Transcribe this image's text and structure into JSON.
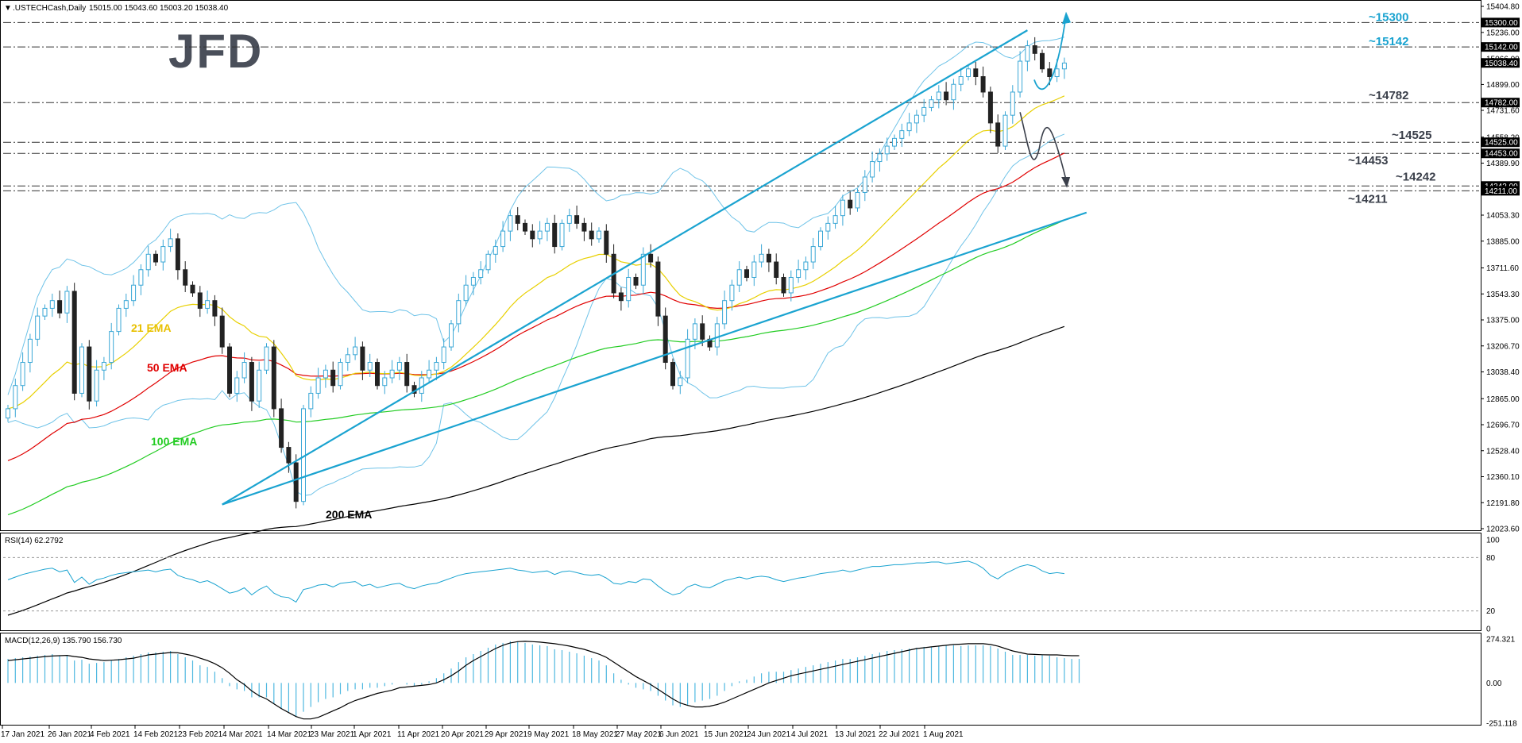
{
  "chart_data": {
    "type": "candlestick",
    "header": {
      "symbol": ".USTECHCash,Daily",
      "ohlc": "15015.00 15043.60 15003.20 15038.40"
    },
    "logo_text": "JFD",
    "price_axis": {
      "ylim": [
        12023.6,
        15404.8
      ],
      "tick_labels": [
        "15404.80",
        "15236.00",
        "15066.00",
        "14899.00",
        "14731.60",
        "14558.20",
        "14389.90",
        "14221.00",
        "14053.30",
        "13885.00",
        "13711.60",
        "13543.30",
        "13375.00",
        "13206.70",
        "13038.40",
        "12865.00",
        "12696.70",
        "12528.40",
        "12360.10",
        "12191.80",
        "12023.60"
      ],
      "price_boxes": [
        {
          "label": "15300.00",
          "value": 15300,
          "dark": true
        },
        {
          "label": "15142.00",
          "value": 15142,
          "dark": true
        },
        {
          "label": "15038.40",
          "value": 15038.4,
          "dark": true
        },
        {
          "label": "14782.00",
          "value": 14782,
          "dark": true
        },
        {
          "label": "14525.00",
          "value": 14525,
          "dark": true
        },
        {
          "label": "14453.00",
          "value": 14453,
          "dark": true
        },
        {
          "label": "14242.00",
          "value": 14242,
          "dark": true
        },
        {
          "label": "14211.00",
          "value": 14211,
          "dark": true
        }
      ]
    },
    "levels": [
      {
        "label": "~15300",
        "value": 15300,
        "color": "#1aa3d0"
      },
      {
        "label": "~15142",
        "value": 15142,
        "color": "#1aa3d0"
      },
      {
        "label": "~14782",
        "value": 14782,
        "color": "#3a3f4a"
      },
      {
        "label": "~14525",
        "value": 14525,
        "color": "#3a3f4a"
      },
      {
        "label": "~14453",
        "value": 14453,
        "color": "#3a3f4a"
      },
      {
        "label": "~14242",
        "value": 14242,
        "color": "#3a3f4a"
      },
      {
        "label": "~14211",
        "value": 14211,
        "color": "#3a3f4a"
      }
    ],
    "ema_labels": [
      {
        "label": "21 EMA",
        "color": "#e8c000"
      },
      {
        "label": "50 EMA",
        "color": "#e00000"
      },
      {
        "label": "100 EMA",
        "color": "#22cc22"
      },
      {
        "label": "200 EMA",
        "color": "#000000"
      }
    ],
    "x_axis_labels": [
      "17 Jan 2021",
      "26 Jan 2021",
      "4 Feb 2021",
      "14 Feb 2021",
      "23 Feb 2021",
      "4 Mar 2021",
      "14 Mar 2021",
      "23 Mar 2021",
      "1 Apr 2021",
      "11 Apr 2021",
      "20 Apr 2021",
      "29 Apr 2021",
      "9 May 2021",
      "18 May 2021",
      "27 May 2021",
      "6 Jun 2021",
      "15 Jun 2021",
      "24 Jun 2021",
      "4 Jul 2021",
      "13 Jul 2021",
      "22 Jul 2021",
      "1 Aug 2021"
    ],
    "closes": [
      12800,
      12950,
      13100,
      13250,
      13400,
      13450,
      13500,
      13420,
      13560,
      12900,
      13200,
      12850,
      13050,
      13100,
      13300,
      13450,
      13500,
      13600,
      13700,
      13800,
      13750,
      13850,
      13900,
      13700,
      13600,
      13550,
      13450,
      13500,
      13400,
      13200,
      12900,
      13000,
      13100,
      12850,
      13050,
      13200,
      12800,
      12550,
      12450,
      12200,
      12800,
      12900,
      13000,
      13050,
      12950,
      13100,
      13150,
      13200,
      13050,
      13100,
      12950,
      13000,
      13050,
      13100,
      12950,
      12900,
      13000,
      13050,
      13100,
      13200,
      13350,
      13500,
      13600,
      13650,
      13700,
      13800,
      13850,
      13950,
      14050,
      14000,
      13950,
      13900,
      13950,
      14000,
      13850,
      14000,
      14050,
      14000,
      13950,
      13900,
      13950,
      13800,
      13550,
      13500,
      13650,
      13600,
      13800,
      13750,
      13400,
      13100,
      12950,
      13000,
      13250,
      13350,
      13250,
      13200,
      13350,
      13500,
      13600,
      13700,
      13650,
      13750,
      13800,
      13750,
      13650,
      13550,
      13650,
      13700,
      13750,
      13850,
      13950,
      14000,
      14050,
      14150,
      14100,
      14200,
      14300,
      14400,
      14450,
      14500,
      14550,
      14600,
      14650,
      14700,
      14750,
      14800,
      14850,
      14800,
      14900,
      14950,
      15000,
      14950,
      14850,
      14650,
      14500,
      14700,
      14850,
      15050,
      15150,
      15100,
      15000,
      14950,
      15000,
      15038
    ],
    "rsi": {
      "label": "RSI(14) 62.2792",
      "ylim": [
        0,
        100
      ],
      "tick_labels": [
        "100",
        "80",
        "20",
        "0"
      ],
      "values": [
        55,
        58,
        61,
        63,
        65,
        67,
        68,
        64,
        66,
        52,
        58,
        50,
        55,
        57,
        60,
        62,
        63,
        64,
        65,
        66,
        64,
        66,
        67,
        60,
        57,
        55,
        52,
        54,
        50,
        45,
        40,
        42,
        46,
        38,
        44,
        48,
        40,
        36,
        35,
        30,
        44,
        46,
        49,
        50,
        47,
        51,
        52,
        53,
        48,
        50,
        46,
        48,
        50,
        51,
        47,
        45,
        48,
        50,
        51,
        54,
        57,
        60,
        62,
        63,
        64,
        65,
        66,
        67,
        68,
        66,
        65,
        63,
        64,
        65,
        61,
        64,
        65,
        63,
        61,
        60,
        61,
        57,
        51,
        50,
        53,
        52,
        56,
        55,
        48,
        42,
        38,
        40,
        47,
        50,
        47,
        46,
        50,
        54,
        56,
        58,
        56,
        58,
        59,
        58,
        55,
        53,
        55,
        57,
        58,
        60,
        62,
        63,
        64,
        66,
        64,
        66,
        68,
        70,
        70,
        71,
        72,
        72,
        73,
        74,
        74,
        75,
        75,
        73,
        74,
        75,
        76,
        73,
        68,
        60,
        56,
        62,
        66,
        70,
        72,
        70,
        65,
        62,
        63,
        62
      ]
    },
    "macd": {
      "label": "MACD(12,26,9) 135.790 156.730",
      "ylim": [
        -251.118,
        274.321
      ],
      "tick_labels": [
        "274.321",
        "0.00",
        "-251.118"
      ],
      "histogram": [
        150,
        155,
        160,
        165,
        170,
        175,
        180,
        170,
        175,
        140,
        145,
        120,
        125,
        130,
        140,
        150,
        160,
        170,
        180,
        190,
        190,
        195,
        200,
        180,
        160,
        140,
        110,
        100,
        70,
        30,
        -20,
        -40,
        -50,
        -90,
        -90,
        -90,
        -130,
        -160,
        -180,
        -210,
        -180,
        -150,
        -120,
        -100,
        -90,
        -70,
        -50,
        -40,
        -40,
        -30,
        -30,
        -20,
        -10,
        0,
        -10,
        -20,
        -10,
        10,
        30,
        60,
        90,
        130,
        160,
        180,
        200,
        220,
        240,
        250,
        260,
        255,
        250,
        240,
        235,
        230,
        210,
        205,
        195,
        185,
        170,
        155,
        140,
        110,
        60,
        20,
        -10,
        -30,
        -40,
        -50,
        -80,
        -110,
        -140,
        -150,
        -140,
        -120,
        -110,
        -100,
        -80,
        -50,
        -20,
        10,
        20,
        40,
        60,
        70,
        70,
        70,
        80,
        90,
        100,
        110,
        120,
        130,
        140,
        150,
        150,
        160,
        170,
        180,
        190,
        200,
        205,
        210,
        215,
        220,
        225,
        225,
        230,
        235,
        235,
        230,
        235,
        235,
        235,
        230,
        215,
        195,
        175,
        175,
        175,
        170,
        175,
        170,
        160,
        155,
        150,
        150
      ],
      "signal": [
        140,
        145,
        150,
        155,
        160,
        165,
        168,
        170,
        172,
        165,
        160,
        150,
        145,
        140,
        142,
        145,
        150,
        155,
        165,
        175,
        180,
        185,
        190,
        188,
        180,
        170,
        155,
        140,
        120,
        95,
        60,
        20,
        -10,
        -50,
        -80,
        -100,
        -130,
        -160,
        -185,
        -210,
        -225,
        -225,
        -215,
        -195,
        -175,
        -155,
        -130,
        -110,
        -95,
        -80,
        -65,
        -55,
        -45,
        -30,
        -25,
        -20,
        -15,
        -10,
        0,
        20,
        45,
        75,
        110,
        140,
        165,
        190,
        215,
        235,
        250,
        258,
        260,
        258,
        255,
        250,
        245,
        238,
        230,
        220,
        210,
        195,
        180,
        160,
        130,
        100,
        70,
        40,
        15,
        -10,
        -40,
        -70,
        -100,
        -125,
        -140,
        -150,
        -150,
        -145,
        -135,
        -120,
        -100,
        -80,
        -60,
        -40,
        -20,
        0,
        15,
        30,
        45,
        55,
        65,
        75,
        85,
        95,
        105,
        115,
        125,
        135,
        145,
        155,
        165,
        175,
        185,
        195,
        205,
        215,
        220,
        225,
        230,
        235,
        240,
        242,
        245,
        245,
        245,
        240,
        230,
        215,
        200,
        190,
        180,
        178,
        176,
        175,
        175,
        172,
        170,
        170
      ]
    }
  }
}
